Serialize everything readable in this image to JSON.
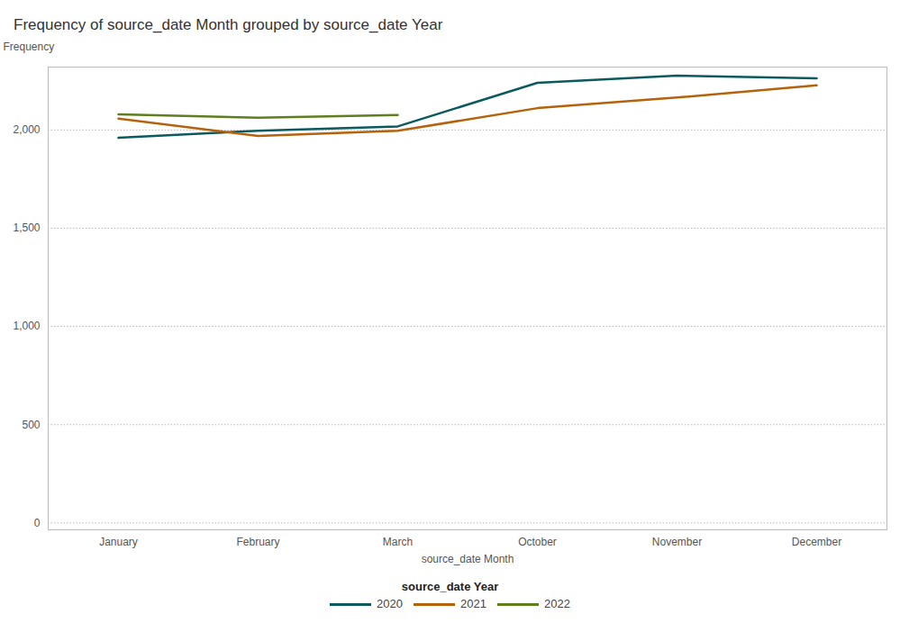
{
  "chart_data": {
    "type": "line",
    "title": "Frequency of source_date Month grouped by source_date Year",
    "y_label": "Frequency",
    "x_label": "source_date Month",
    "legend_title": "source_date Year",
    "categories": [
      "January",
      "February",
      "March",
      "October",
      "November",
      "December"
    ],
    "series": [
      {
        "name": "2020",
        "color": "#0b5a5e",
        "values": [
          1960,
          1996,
          2018,
          2240,
          2276,
          2263
        ]
      },
      {
        "name": "2021",
        "color": "#b5620b",
        "values": [
          2058,
          1969,
          1996,
          2111,
          2165,
          2227
        ]
      },
      {
        "name": "2022",
        "color": "#5f7f1e",
        "values": [
          2080,
          2062,
          2076,
          null,
          null,
          null
        ]
      }
    ],
    "ylim": [
      -35,
      2320
    ],
    "yticks": [
      0,
      500,
      {
        "value": 1000,
        "label": "1,000"
      },
      {
        "value": 1500,
        "label": "1,500"
      },
      {
        "value": 2000,
        "label": "2,000"
      }
    ],
    "grid": true,
    "legend": "bottom"
  }
}
